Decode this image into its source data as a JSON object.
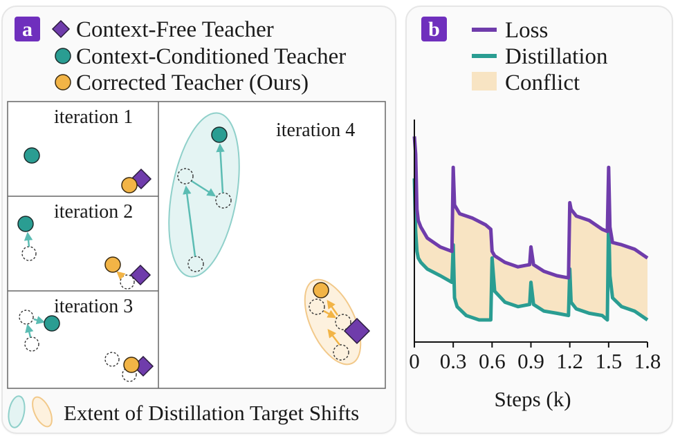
{
  "panel_a": {
    "badge": "a",
    "legend": [
      {
        "label": "Context-Free Teacher",
        "marker": "diamond",
        "color": "#6f3cab"
      },
      {
        "label": "Context-Conditioned Teacher",
        "marker": "circle",
        "color": "#2a9d92"
      },
      {
        "label": "Corrected Teacher (Ours)",
        "marker": "circle",
        "color": "#f2b446"
      }
    ],
    "iterations": [
      "iteration 1",
      "iteration 2",
      "iteration 3",
      "iteration 4"
    ],
    "shift_label": "Extent of Distillation Target Shifts"
  },
  "panel_b": {
    "badge": "b",
    "legend": [
      {
        "label": "Loss",
        "kind": "line",
        "color": "#6f3cab"
      },
      {
        "label": "Distillation",
        "kind": "line",
        "color": "#2a9d92"
      },
      {
        "label": "Conflict",
        "kind": "area",
        "color": "#f8e4c3"
      }
    ]
  },
  "colors": {
    "badge": "#6f2fbd",
    "context_free": "#6f3cab",
    "context_conditioned": "#2a9d92",
    "corrected": "#f2b446",
    "teal_region": "#e4f4f3",
    "orange_region": "#fdf1de",
    "conflict": "#f8e4c3"
  },
  "chart_data": {
    "type": "line",
    "xlabel": "Steps (k)",
    "ylabel": "",
    "x_ticks": [
      "0",
      "0.3",
      "0.6",
      "0.9",
      "1.2",
      "1.5",
      "1.8"
    ],
    "xlim": [
      0,
      1.8
    ],
    "ylim": [
      0,
      1
    ],
    "y_ticks_shown": false,
    "legend_position": "top",
    "series": [
      {
        "name": "Loss",
        "x": [
          0,
          0.01,
          0.02,
          0.03,
          0.05,
          0.1,
          0.2,
          0.29,
          0.3,
          0.31,
          0.35,
          0.45,
          0.55,
          0.59,
          0.6,
          0.62,
          0.7,
          0.8,
          0.89,
          0.9,
          0.92,
          1.0,
          1.1,
          1.19,
          1.2,
          1.21,
          1.25,
          1.35,
          1.45,
          1.49,
          1.5,
          1.51,
          1.53,
          1.6,
          1.7,
          1.8
        ],
        "values": [
          0.93,
          0.85,
          0.6,
          0.55,
          0.52,
          0.47,
          0.43,
          0.41,
          0.79,
          0.62,
          0.58,
          0.56,
          0.53,
          0.51,
          0.41,
          0.39,
          0.36,
          0.34,
          0.35,
          0.43,
          0.35,
          0.32,
          0.3,
          0.29,
          0.63,
          0.6,
          0.57,
          0.55,
          0.51,
          0.5,
          0.79,
          0.52,
          0.45,
          0.44,
          0.42,
          0.38
        ]
      },
      {
        "name": "Distillation",
        "x": [
          0,
          0.01,
          0.02,
          0.03,
          0.05,
          0.1,
          0.2,
          0.29,
          0.3,
          0.31,
          0.33,
          0.4,
          0.5,
          0.59,
          0.6,
          0.62,
          0.7,
          0.8,
          0.89,
          0.9,
          0.92,
          1.0,
          1.1,
          1.19,
          1.2,
          1.21,
          1.25,
          1.35,
          1.45,
          1.49,
          1.5,
          1.51,
          1.53,
          1.6,
          1.7,
          1.8
        ],
        "values": [
          0.74,
          0.5,
          0.41,
          0.38,
          0.36,
          0.33,
          0.3,
          0.27,
          0.44,
          0.2,
          0.16,
          0.12,
          0.1,
          0.1,
          0.38,
          0.23,
          0.18,
          0.16,
          0.17,
          0.27,
          0.17,
          0.14,
          0.13,
          0.12,
          0.33,
          0.18,
          0.15,
          0.13,
          0.12,
          0.1,
          0.58,
          0.3,
          0.2,
          0.16,
          0.14,
          0.1
        ]
      }
    ],
    "conflict_area": "between Loss and Distillation"
  }
}
